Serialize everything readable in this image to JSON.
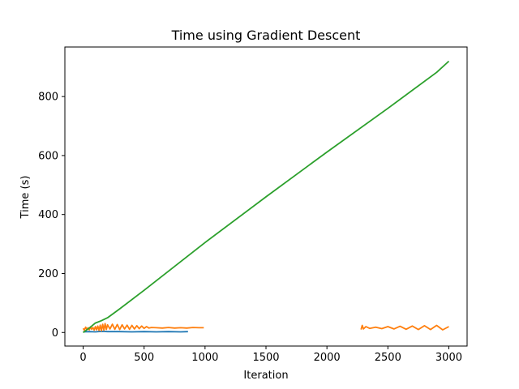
{
  "chart_data": {
    "type": "line",
    "title": "Time using Gradient Descent",
    "xlabel": "Iteration",
    "ylabel": "Time (s)",
    "xlim": [
      -150,
      3150
    ],
    "ylim": [
      -46,
      968
    ],
    "xticks": [
      0,
      500,
      1000,
      1500,
      2000,
      2500,
      3000
    ],
    "yticks": [
      0,
      200,
      400,
      600,
      800
    ],
    "grid": false,
    "series": [
      {
        "color": "#1f77b4",
        "x": [
          0,
          50,
          100,
          150,
          200,
          300,
          400,
          500,
          600,
          700,
          800,
          860
        ],
        "y": [
          2,
          3,
          2,
          4,
          3,
          3,
          2,
          3,
          2,
          3,
          2,
          3
        ]
      },
      {
        "color": "#ff7f0e",
        "x": [
          0,
          10,
          20,
          30,
          40,
          50,
          60,
          70,
          80,
          90,
          100,
          110,
          120,
          130,
          140,
          150,
          160,
          170,
          180,
          190,
          200,
          220,
          240,
          260,
          280,
          300,
          320,
          340,
          360,
          380,
          400,
          420,
          440,
          460,
          480,
          500,
          520,
          540,
          560,
          600,
          650,
          700,
          750,
          800,
          850,
          900,
          950,
          990
        ],
        "y": [
          14,
          8,
          18,
          10,
          16,
          9,
          19,
          11,
          17,
          8,
          20,
          9,
          22,
          7,
          25,
          6,
          28,
          8,
          30,
          10,
          26,
          12,
          28,
          11,
          27,
          10,
          26,
          12,
          25,
          11,
          24,
          12,
          23,
          13,
          22,
          14,
          20,
          15,
          17,
          16,
          15,
          17,
          15,
          16,
          15,
          17,
          16,
          16
        ]
      },
      {
        "color": "#ff7f0e",
        "x": [
          2280,
          2290,
          2300,
          2320,
          2350,
          2400,
          2450,
          2500,
          2550,
          2600,
          2650,
          2700,
          2750,
          2800,
          2850,
          2900,
          2950,
          3000
        ],
        "y": [
          10,
          24,
          12,
          20,
          14,
          18,
          13,
          20,
          12,
          21,
          11,
          22,
          10,
          23,
          10,
          24,
          9,
          20
        ]
      },
      {
        "color": "#2ca02c",
        "x": [
          0,
          50,
          100,
          150,
          200,
          300,
          500,
          1000,
          1500,
          2000,
          2500,
          2900,
          3000
        ],
        "y": [
          0,
          15,
          32,
          40,
          50,
          80,
          143,
          305,
          460,
          612,
          760,
          882,
          920
        ]
      }
    ]
  }
}
